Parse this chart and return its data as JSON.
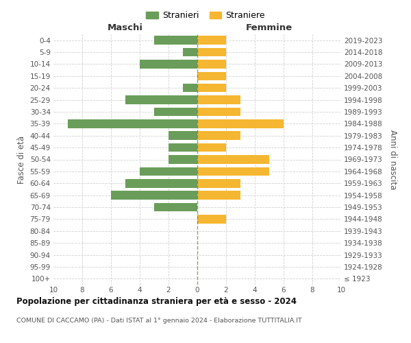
{
  "age_groups": [
    "100+",
    "95-99",
    "90-94",
    "85-89",
    "80-84",
    "75-79",
    "70-74",
    "65-69",
    "60-64",
    "55-59",
    "50-54",
    "45-49",
    "40-44",
    "35-39",
    "30-34",
    "25-29",
    "20-24",
    "15-19",
    "10-14",
    "5-9",
    "0-4"
  ],
  "birth_years": [
    "≤ 1923",
    "1924-1928",
    "1929-1933",
    "1934-1938",
    "1939-1943",
    "1944-1948",
    "1949-1953",
    "1954-1958",
    "1959-1963",
    "1964-1968",
    "1969-1973",
    "1974-1978",
    "1979-1983",
    "1984-1988",
    "1989-1993",
    "1994-1998",
    "1999-2003",
    "2004-2008",
    "2009-2013",
    "2014-2018",
    "2019-2023"
  ],
  "males": [
    0,
    0,
    0,
    0,
    0,
    0,
    3,
    6,
    5,
    4,
    2,
    2,
    2,
    9,
    3,
    5,
    1,
    0,
    4,
    1,
    3
  ],
  "females": [
    0,
    0,
    0,
    0,
    0,
    2,
    0,
    3,
    3,
    5,
    5,
    2,
    3,
    6,
    3,
    3,
    2,
    2,
    2,
    2,
    2
  ],
  "male_color": "#6a9d5a",
  "female_color": "#f5b731",
  "center_line_color": "#7a7a30",
  "title": "Popolazione per cittadinanza straniera per età e sesso - 2024",
  "subtitle": "COMUNE DI CACCAMO (PA) - Dati ISTAT al 1° gennaio 2024 - Elaborazione TUTTITALIA.IT",
  "ylabel_left": "Fasce di età",
  "ylabel_right": "Anni di nascita",
  "xlabel_left": "Maschi",
  "xlabel_right": "Femmine",
  "legend_male": "Stranieri",
  "legend_female": "Straniere",
  "xlim": 10,
  "bg_color": "#ffffff",
  "grid_color": "#d0d0d0"
}
